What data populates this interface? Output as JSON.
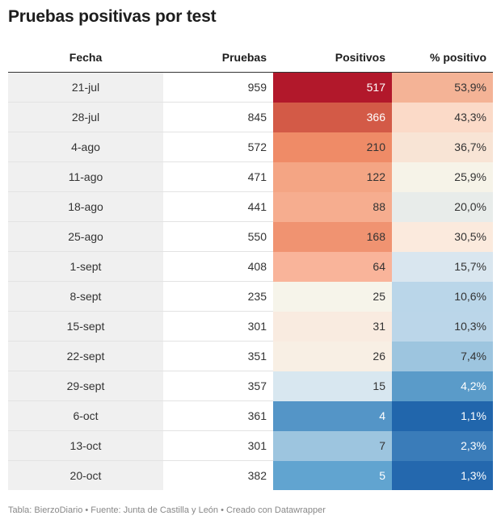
{
  "title": "Pruebas positivas por test",
  "chart_data": {
    "type": "table",
    "columns": [
      "Fecha",
      "Pruebas",
      "Positivos",
      "% positivo"
    ],
    "rows": [
      {
        "fecha": "21-jul",
        "pruebas": "959",
        "positivos": "517",
        "pct": "53,9%",
        "pos_color": "#b2182b",
        "pct_color": "#f4b396"
      },
      {
        "fecha": "28-jul",
        "pruebas": "845",
        "positivos": "366",
        "pct": "43,3%",
        "pos_color": "#d35a47",
        "pct_color": "#fbdac8"
      },
      {
        "fecha": "4-ago",
        "pruebas": "572",
        "positivos": "210",
        "pct": "36,7%",
        "pos_color": "#ef8b67",
        "pct_color": "#f8e4d5"
      },
      {
        "fecha": "11-ago",
        "pruebas": "471",
        "positivos": "122",
        "pct": "25,9%",
        "pos_color": "#f4a584",
        "pct_color": "#f6f3e8"
      },
      {
        "fecha": "18-ago",
        "pruebas": "441",
        "positivos": "88",
        "pct": "20,0%",
        "pos_color": "#f6ad8f",
        "pct_color": "#e8ecea"
      },
      {
        "fecha": "25-ago",
        "pruebas": "550",
        "positivos": "168",
        "pct": "30,5%",
        "pos_color": "#f09371",
        "pct_color": "#fbeadd"
      },
      {
        "fecha": "1-sept",
        "pruebas": "408",
        "positivos": "64",
        "pct": "15,7%",
        "pos_color": "#f9b49a",
        "pct_color": "#d9e6ef"
      },
      {
        "fecha": "8-sept",
        "pruebas": "235",
        "positivos": "25",
        "pct": "10,6%",
        "pos_color": "#f6f4ea",
        "pct_color": "#bad6e9"
      },
      {
        "fecha": "15-sept",
        "pruebas": "301",
        "positivos": "31",
        "pct": "10,3%",
        "pos_color": "#f9ebe0",
        "pct_color": "#bbd6e9"
      },
      {
        "fecha": "22-sept",
        "pruebas": "351",
        "positivos": "26",
        "pct": "7,4%",
        "pos_color": "#f8efe4",
        "pct_color": "#9dc5df"
      },
      {
        "fecha": "29-sept",
        "pruebas": "357",
        "positivos": "15",
        "pct": "4,2%",
        "pos_color": "#d8e7f0",
        "pct_color": "#5a9bc9"
      },
      {
        "fecha": "6-oct",
        "pruebas": "361",
        "positivos": "4",
        "pct": "1,1%",
        "pos_color": "#5495c7",
        "pct_color": "#2166ac"
      },
      {
        "fecha": "13-oct",
        "pruebas": "301",
        "positivos": "7",
        "pct": "2,3%",
        "pos_color": "#9dc5df",
        "pct_color": "#3a7cb9"
      },
      {
        "fecha": "20-oct",
        "pruebas": "382",
        "positivos": "5",
        "pct": "1,3%",
        "pos_color": "#61a4d0",
        "pct_color": "#2468ae"
      }
    ]
  },
  "footer": "Tabla: BierzoDiario • Fuente: Junta de Castilla y León • Creado con Datawrapper"
}
